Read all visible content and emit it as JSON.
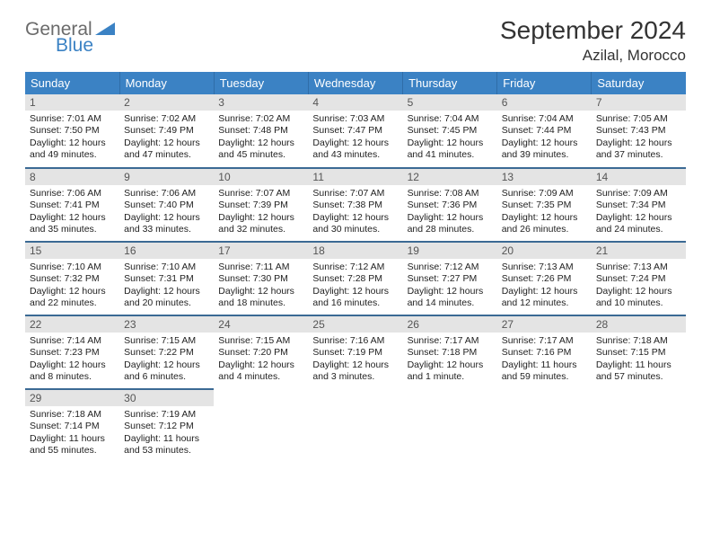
{
  "logo": {
    "word1": "General",
    "word2": "Blue"
  },
  "title": "September 2024",
  "location": "Azilal, Morocco",
  "colors": {
    "header_bg": "#3b82c4",
    "header_text": "#ffffff",
    "row_divider": "#3b6a94",
    "daynum_bg": "#e4e4e4",
    "daynum_text": "#555555",
    "body_text": "#222222",
    "page_bg": "#ffffff",
    "logo_gray": "#6b6b6b",
    "logo_blue": "#3b82c4"
  },
  "typography": {
    "title_fontsize": 28,
    "location_fontsize": 17,
    "weekday_fontsize": 13,
    "daynum_fontsize": 12,
    "body_fontsize": 10.5
  },
  "weekdays": [
    "Sunday",
    "Monday",
    "Tuesday",
    "Wednesday",
    "Thursday",
    "Friday",
    "Saturday"
  ],
  "days": [
    {
      "n": "1",
      "sr": "Sunrise: 7:01 AM",
      "ss": "Sunset: 7:50 PM",
      "d1": "Daylight: 12 hours",
      "d2": "and 49 minutes."
    },
    {
      "n": "2",
      "sr": "Sunrise: 7:02 AM",
      "ss": "Sunset: 7:49 PM",
      "d1": "Daylight: 12 hours",
      "d2": "and 47 minutes."
    },
    {
      "n": "3",
      "sr": "Sunrise: 7:02 AM",
      "ss": "Sunset: 7:48 PM",
      "d1": "Daylight: 12 hours",
      "d2": "and 45 minutes."
    },
    {
      "n": "4",
      "sr": "Sunrise: 7:03 AM",
      "ss": "Sunset: 7:47 PM",
      "d1": "Daylight: 12 hours",
      "d2": "and 43 minutes."
    },
    {
      "n": "5",
      "sr": "Sunrise: 7:04 AM",
      "ss": "Sunset: 7:45 PM",
      "d1": "Daylight: 12 hours",
      "d2": "and 41 minutes."
    },
    {
      "n": "6",
      "sr": "Sunrise: 7:04 AM",
      "ss": "Sunset: 7:44 PM",
      "d1": "Daylight: 12 hours",
      "d2": "and 39 minutes."
    },
    {
      "n": "7",
      "sr": "Sunrise: 7:05 AM",
      "ss": "Sunset: 7:43 PM",
      "d1": "Daylight: 12 hours",
      "d2": "and 37 minutes."
    },
    {
      "n": "8",
      "sr": "Sunrise: 7:06 AM",
      "ss": "Sunset: 7:41 PM",
      "d1": "Daylight: 12 hours",
      "d2": "and 35 minutes."
    },
    {
      "n": "9",
      "sr": "Sunrise: 7:06 AM",
      "ss": "Sunset: 7:40 PM",
      "d1": "Daylight: 12 hours",
      "d2": "and 33 minutes."
    },
    {
      "n": "10",
      "sr": "Sunrise: 7:07 AM",
      "ss": "Sunset: 7:39 PM",
      "d1": "Daylight: 12 hours",
      "d2": "and 32 minutes."
    },
    {
      "n": "11",
      "sr": "Sunrise: 7:07 AM",
      "ss": "Sunset: 7:38 PM",
      "d1": "Daylight: 12 hours",
      "d2": "and 30 minutes."
    },
    {
      "n": "12",
      "sr": "Sunrise: 7:08 AM",
      "ss": "Sunset: 7:36 PM",
      "d1": "Daylight: 12 hours",
      "d2": "and 28 minutes."
    },
    {
      "n": "13",
      "sr": "Sunrise: 7:09 AM",
      "ss": "Sunset: 7:35 PM",
      "d1": "Daylight: 12 hours",
      "d2": "and 26 minutes."
    },
    {
      "n": "14",
      "sr": "Sunrise: 7:09 AM",
      "ss": "Sunset: 7:34 PM",
      "d1": "Daylight: 12 hours",
      "d2": "and 24 minutes."
    },
    {
      "n": "15",
      "sr": "Sunrise: 7:10 AM",
      "ss": "Sunset: 7:32 PM",
      "d1": "Daylight: 12 hours",
      "d2": "and 22 minutes."
    },
    {
      "n": "16",
      "sr": "Sunrise: 7:10 AM",
      "ss": "Sunset: 7:31 PM",
      "d1": "Daylight: 12 hours",
      "d2": "and 20 minutes."
    },
    {
      "n": "17",
      "sr": "Sunrise: 7:11 AM",
      "ss": "Sunset: 7:30 PM",
      "d1": "Daylight: 12 hours",
      "d2": "and 18 minutes."
    },
    {
      "n": "18",
      "sr": "Sunrise: 7:12 AM",
      "ss": "Sunset: 7:28 PM",
      "d1": "Daylight: 12 hours",
      "d2": "and 16 minutes."
    },
    {
      "n": "19",
      "sr": "Sunrise: 7:12 AM",
      "ss": "Sunset: 7:27 PM",
      "d1": "Daylight: 12 hours",
      "d2": "and 14 minutes."
    },
    {
      "n": "20",
      "sr": "Sunrise: 7:13 AM",
      "ss": "Sunset: 7:26 PM",
      "d1": "Daylight: 12 hours",
      "d2": "and 12 minutes."
    },
    {
      "n": "21",
      "sr": "Sunrise: 7:13 AM",
      "ss": "Sunset: 7:24 PM",
      "d1": "Daylight: 12 hours",
      "d2": "and 10 minutes."
    },
    {
      "n": "22",
      "sr": "Sunrise: 7:14 AM",
      "ss": "Sunset: 7:23 PM",
      "d1": "Daylight: 12 hours",
      "d2": "and 8 minutes."
    },
    {
      "n": "23",
      "sr": "Sunrise: 7:15 AM",
      "ss": "Sunset: 7:22 PM",
      "d1": "Daylight: 12 hours",
      "d2": "and 6 minutes."
    },
    {
      "n": "24",
      "sr": "Sunrise: 7:15 AM",
      "ss": "Sunset: 7:20 PM",
      "d1": "Daylight: 12 hours",
      "d2": "and 4 minutes."
    },
    {
      "n": "25",
      "sr": "Sunrise: 7:16 AM",
      "ss": "Sunset: 7:19 PM",
      "d1": "Daylight: 12 hours",
      "d2": "and 3 minutes."
    },
    {
      "n": "26",
      "sr": "Sunrise: 7:17 AM",
      "ss": "Sunset: 7:18 PM",
      "d1": "Daylight: 12 hours",
      "d2": "and 1 minute."
    },
    {
      "n": "27",
      "sr": "Sunrise: 7:17 AM",
      "ss": "Sunset: 7:16 PM",
      "d1": "Daylight: 11 hours",
      "d2": "and 59 minutes."
    },
    {
      "n": "28",
      "sr": "Sunrise: 7:18 AM",
      "ss": "Sunset: 7:15 PM",
      "d1": "Daylight: 11 hours",
      "d2": "and 57 minutes."
    },
    {
      "n": "29",
      "sr": "Sunrise: 7:18 AM",
      "ss": "Sunset: 7:14 PM",
      "d1": "Daylight: 11 hours",
      "d2": "and 55 minutes."
    },
    {
      "n": "30",
      "sr": "Sunrise: 7:19 AM",
      "ss": "Sunset: 7:12 PM",
      "d1": "Daylight: 11 hours",
      "d2": "and 53 minutes."
    }
  ]
}
